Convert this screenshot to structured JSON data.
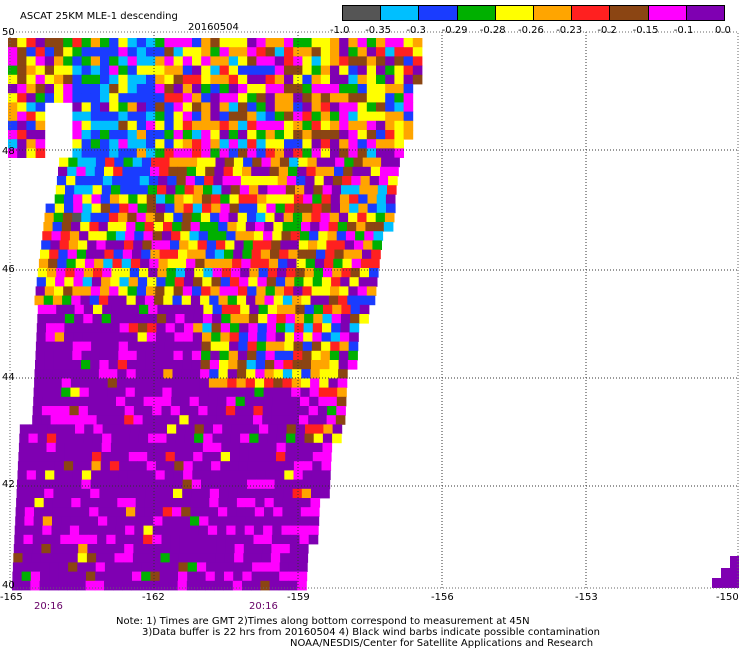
{
  "title": "ASCAT 25KM MLE-1 descending",
  "date": "20160504",
  "colorbar": {
    "colors": [
      "#555555",
      "#00bfff",
      "#1a3cff",
      "#00b000",
      "#ffff00",
      "#ffa500",
      "#ff2020",
      "#8b4513",
      "#ff00ff",
      "#7f00b2"
    ],
    "labels": [
      "-1.0",
      "-0.35",
      "-0.3",
      "-0.29",
      "-0.28",
      "-0.26",
      "-0.23",
      "-0.2",
      "-0.15",
      "-0.1",
      "0.0"
    ]
  },
  "lat_labels": [
    "50",
    "48",
    "46",
    "44",
    "42",
    "40"
  ],
  "lon_labels": [
    "-165",
    "-162",
    "-159",
    "-156",
    "-153",
    "-150"
  ],
  "time_labels": [
    "20:16",
    "20:16"
  ],
  "notes": [
    "Note: 1) Times are GMT 2)Times along bottom correspond to measurement at 45N",
    "3)Data buffer is 22 hrs from 20160504 4) Black wind barbs indicate possible contamination",
    "NOAA/NESDIS/Center for Satellite Applications and Research"
  ]
}
